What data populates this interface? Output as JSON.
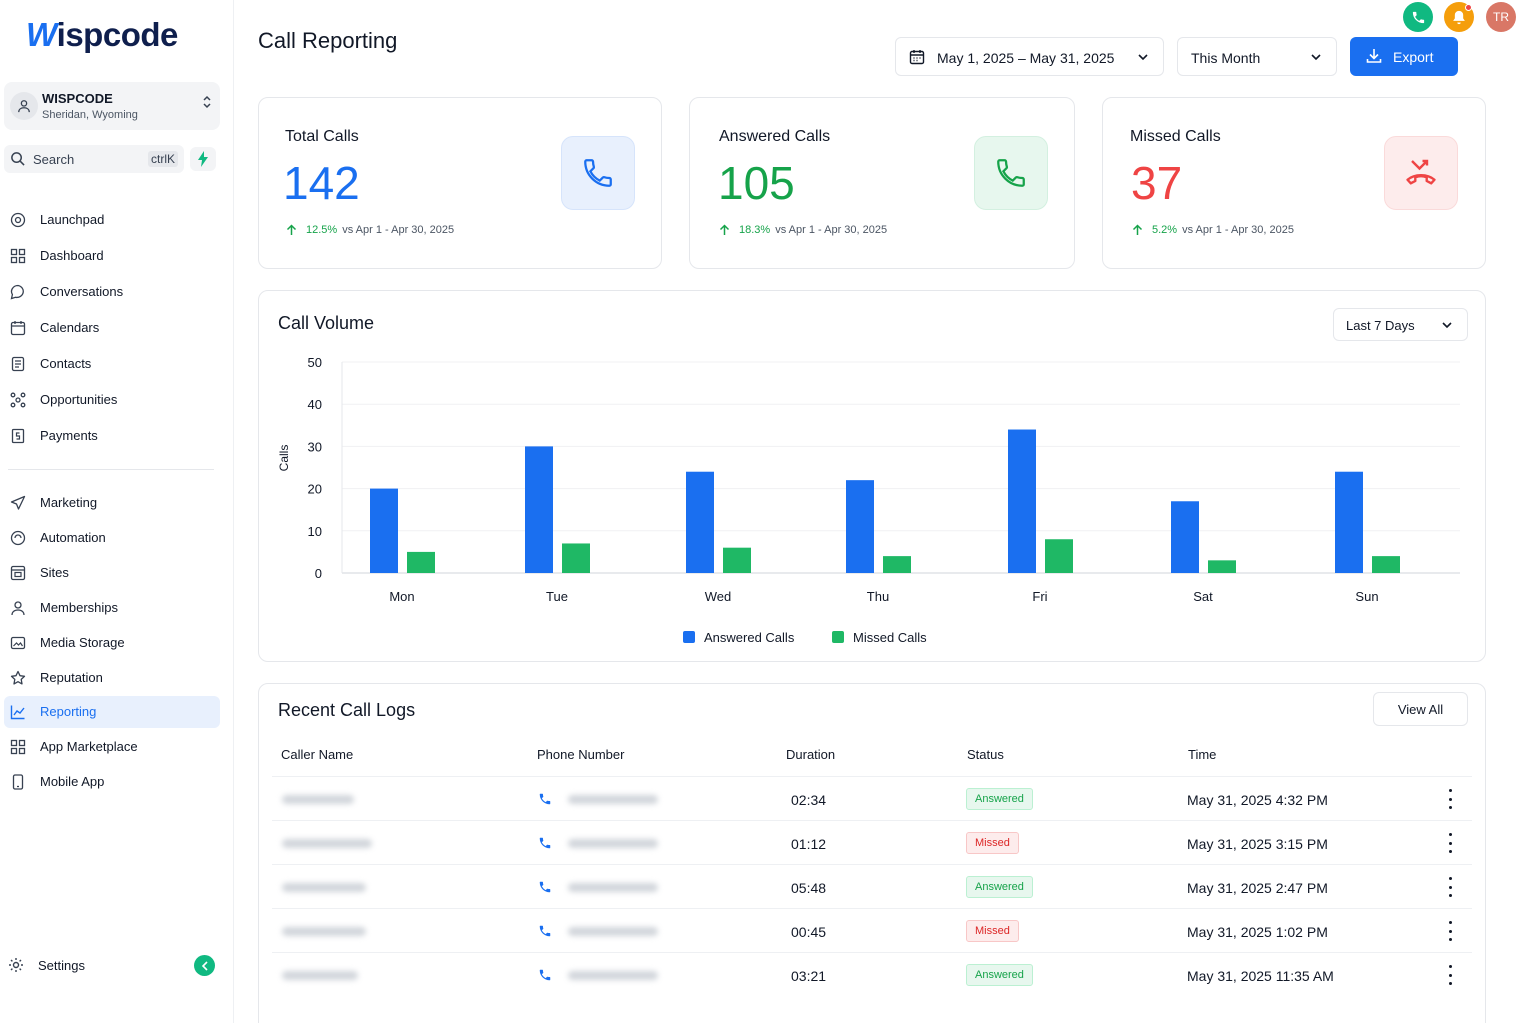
{
  "brand": {
    "logo_first": "W",
    "logo_rest": "ispcode"
  },
  "account": {
    "name": "WISPCODE",
    "location": "Sheridan, Wyoming"
  },
  "search": {
    "label": "Search",
    "shortcut": "ctrlK"
  },
  "nav": {
    "primary": [
      "Launchpad",
      "Dashboard",
      "Conversations",
      "Calendars",
      "Contacts",
      "Opportunities",
      "Payments"
    ],
    "secondary": [
      "Marketing",
      "Automation",
      "Sites",
      "Memberships",
      "Media Storage",
      "Reputation",
      "Reporting",
      "App Marketplace",
      "Mobile App"
    ],
    "active": "Reporting",
    "settings": "Settings"
  },
  "header": {
    "title": "Call Reporting",
    "date_range": "May 1, 2025 – May 31, 2025",
    "period": "This Month",
    "export_label": "Export",
    "avatar_initials": "TR"
  },
  "stats": [
    {
      "label": "Total Calls",
      "value": "142",
      "change": "12.5%",
      "compare": "vs Apr 1 - Apr 30, 2025",
      "color": "#1a6ff0"
    },
    {
      "label": "Answered Calls",
      "value": "105",
      "change": "18.3%",
      "compare": "vs Apr 1 - Apr 30, 2025",
      "color": "#16a34a"
    },
    {
      "label": "Missed Calls",
      "value": "37",
      "change": "5.2%",
      "compare": "vs Apr 1 - Apr 30, 2025",
      "color": "#ef4444"
    }
  ],
  "volume": {
    "title": "Call Volume",
    "range_label": "Last 7 Days"
  },
  "chart_data": {
    "type": "bar",
    "categories": [
      "Mon",
      "Tue",
      "Wed",
      "Thu",
      "Fri",
      "Sat",
      "Sun"
    ],
    "series": [
      {
        "name": "Answered Calls",
        "values": [
          20,
          30,
          24,
          22,
          34,
          17,
          24
        ],
        "color": "#1a6ff0"
      },
      {
        "name": "Missed Calls",
        "values": [
          5,
          7,
          6,
          4,
          8,
          3,
          4
        ],
        "color": "#1fb865"
      }
    ],
    "title": "",
    "xlabel": "",
    "ylabel": "Calls",
    "yticks": [
      0,
      10,
      20,
      30,
      40,
      50
    ],
    "ylim": [
      0,
      50
    ],
    "grid": true,
    "legend": "bottom-center"
  },
  "logs": {
    "title": "Recent Call Logs",
    "view_all": "View All",
    "columns": [
      "Caller Name",
      "Phone Number",
      "Duration",
      "Status",
      "Time"
    ],
    "rows": [
      {
        "duration": "02:34",
        "status": "Answered",
        "time": "May 31, 2025 4:32 PM"
      },
      {
        "duration": "01:12",
        "status": "Missed",
        "time": "May 31, 2025 3:15 PM"
      },
      {
        "duration": "05:48",
        "status": "Answered",
        "time": "May 31, 2025 2:47 PM"
      },
      {
        "duration": "00:45",
        "status": "Missed",
        "time": "May 31, 2025 1:02 PM"
      },
      {
        "duration": "03:21",
        "status": "Answered",
        "time": "May 31, 2025 11:35 AM"
      }
    ]
  }
}
